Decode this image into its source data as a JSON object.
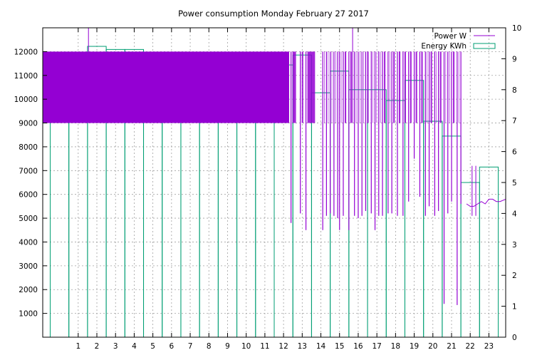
{
  "chart_data": {
    "type": "bar",
    "title": "Power consumption Monday February 27 2017",
    "xlabel": "",
    "ylabel": "",
    "y2label": "",
    "grid": true,
    "legend_position": "top-right",
    "xlim": [
      -0.9,
      23.9
    ],
    "ylim": [
      0,
      13000
    ],
    "y2lim": [
      0,
      10
    ],
    "x_ticks": [
      "1",
      "2",
      "3",
      "4",
      "5",
      "6",
      "7",
      "8",
      "9",
      "10",
      "11",
      "12",
      "13",
      "14",
      "15",
      "16",
      "17",
      "18",
      "19",
      "20",
      "21",
      "22",
      "23"
    ],
    "y_ticks": [
      "1000",
      "2000",
      "3000",
      "4000",
      "5000",
      "6000",
      "7000",
      "8000",
      "9000",
      "10000",
      "11000",
      "12000"
    ],
    "y2_ticks": [
      "0",
      "1",
      "2",
      "3",
      "4",
      "5",
      "6",
      "7",
      "8",
      "9",
      "10"
    ],
    "series": [
      {
        "name": "Energy KWh",
        "axis": "y2",
        "type": "bar",
        "color": "#009e73",
        "x": [
          0,
          1,
          2,
          3,
          4,
          5,
          6,
          7,
          8,
          9,
          10,
          11,
          12,
          13,
          14,
          15,
          16,
          17,
          18,
          19,
          20,
          21,
          22,
          23
        ],
        "values": [
          9.18,
          9.18,
          9.4,
          9.3,
          9.3,
          9.12,
          9.12,
          9.18,
          9.12,
          9.18,
          9.02,
          9.18,
          8.8,
          9.12,
          7.9,
          8.6,
          8.0,
          8.0,
          7.65,
          8.3,
          6.98,
          6.5,
          5.0,
          5.5
        ]
      },
      {
        "name": "Power W",
        "axis": "y",
        "type": "line",
        "color": "#9400d3",
        "solid_band": {
          "x_from": -0.9,
          "x_to": 12.3,
          "low": 9000,
          "high": 12000
        },
        "spikes": [
          {
            "x": 1.55,
            "low": 9000,
            "high": 13000
          },
          {
            "x": 15.7,
            "low": 9000,
            "high": 13000
          }
        ],
        "dips": [
          {
            "x": 12.4,
            "low": 4800
          },
          {
            "x": 12.9,
            "low": 5200
          },
          {
            "x": 13.2,
            "low": 4500
          },
          {
            "x": 14.1,
            "low": 4500
          },
          {
            "x": 14.3,
            "low": 5100
          },
          {
            "x": 14.5,
            "low": 5200
          },
          {
            "x": 14.7,
            "low": 5100
          },
          {
            "x": 14.9,
            "low": 5000
          },
          {
            "x": 15.0,
            "low": 4500
          },
          {
            "x": 15.2,
            "low": 5100
          },
          {
            "x": 15.5,
            "low": 4500
          },
          {
            "x": 15.8,
            "low": 5100
          },
          {
            "x": 16.0,
            "low": 5000
          },
          {
            "x": 16.2,
            "low": 5100
          },
          {
            "x": 16.4,
            "low": 5300
          },
          {
            "x": 16.7,
            "low": 5200
          },
          {
            "x": 16.9,
            "low": 4500
          },
          {
            "x": 17.1,
            "low": 5100
          },
          {
            "x": 17.3,
            "low": 5100
          },
          {
            "x": 17.6,
            "low": 5200
          },
          {
            "x": 17.8,
            "low": 5200
          },
          {
            "x": 18.1,
            "low": 5100
          },
          {
            "x": 18.4,
            "low": 5100
          },
          {
            "x": 18.7,
            "low": 5700
          },
          {
            "x": 19.0,
            "low": 7500
          },
          {
            "x": 19.3,
            "low": 5900
          },
          {
            "x": 19.6,
            "low": 5100
          },
          {
            "x": 19.8,
            "low": 5500
          },
          {
            "x": 20.1,
            "low": 5100
          },
          {
            "x": 20.3,
            "low": 5300
          },
          {
            "x": 20.6,
            "low": 1400
          },
          {
            "x": 20.8,
            "low": 5200
          },
          {
            "x": 21.0,
            "low": 5700
          },
          {
            "x": 21.3,
            "low": 1350
          },
          {
            "x": 21.5,
            "low": 5600
          }
        ],
        "tail_x": [
          21.8,
          22.0,
          22.2,
          22.4,
          22.6,
          22.8,
          23.0,
          23.2,
          23.4,
          23.6,
          23.9
        ],
        "tail_y": [
          5600,
          5500,
          5500,
          5600,
          5700,
          5600,
          5800,
          5800,
          5700,
          5700,
          5800
        ],
        "tail_spikes": [
          {
            "x": 22.1,
            "low": 5100,
            "high": 7200
          },
          {
            "x": 22.3,
            "low": 5100,
            "high": 7200
          }
        ]
      }
    ]
  }
}
